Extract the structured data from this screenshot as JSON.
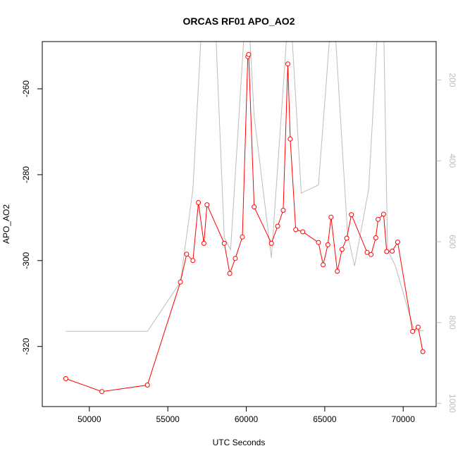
{
  "chart_data": {
    "type": "line",
    "title": "ORCAS RF01 APO_AO2",
    "xlabel": "UTC Seconds",
    "ylabel": "APO_AO2",
    "xlim": [
      47000,
      72100
    ],
    "ylim": [
      -334,
      -249
    ],
    "y2lim": [
      105,
      1008
    ],
    "y2_reversed": true,
    "x_ticks": [
      50000,
      55000,
      60000,
      65000,
      70000
    ],
    "y_ticks": [
      -320,
      -300,
      -280,
      -260
    ],
    "y2_ticks": [
      200,
      400,
      600,
      800,
      1000
    ],
    "series": [
      {
        "role": "primary",
        "color": "#ff0000",
        "marker": "open-circle",
        "x": [
          48500,
          50800,
          53700,
          55800,
          56200,
          56600,
          56950,
          57300,
          57500,
          58600,
          58950,
          59300,
          59750,
          60100,
          60150,
          60500,
          61600,
          62000,
          62350,
          62650,
          62800,
          63150,
          63600,
          64600,
          64900,
          65200,
          65400,
          65800,
          66100,
          66400,
          66700,
          67700,
          67950,
          68250,
          68400,
          68750,
          68950,
          69300,
          69650,
          70600,
          70950,
          71250
        ],
        "y": [
          -327.5,
          -330.5,
          -329,
          -305,
          -298.5,
          -300,
          -286.5,
          -296,
          -287,
          -296,
          -303,
          -299.5,
          -294.5,
          -252.5,
          -252,
          -287.5,
          -296,
          -292,
          -288.3,
          -254.2,
          -271.7,
          -292.8,
          -293.3,
          -295.8,
          -301,
          -296.3,
          -289.9,
          -302.5,
          -297.4,
          -294.8,
          -289.3,
          -298.1,
          -298.6,
          -294.7,
          -290.4,
          -289.2,
          -297.9,
          -297.8,
          -295.7,
          -316.5,
          -315.5,
          -321.2
        ]
      },
      {
        "role": "secondary",
        "color": "#bdbdbd",
        "x": [
          48500,
          53700,
          55800,
          56600,
          57200,
          58000,
          58600,
          59000,
          59900,
          60150,
          60500,
          61600,
          62600,
          62900,
          63500,
          64600,
          65400,
          65650,
          66450,
          66900,
          67800,
          68400,
          68750,
          69000,
          69500,
          70700,
          71300
        ],
        "y": [
          822,
          822,
          700,
          470,
          30,
          30,
          590,
          620,
          60,
          40,
          290,
          640,
          80,
          80,
          480,
          460,
          50,
          70,
          580,
          660,
          470,
          50,
          50,
          620,
          660,
          820,
          820
        ]
      }
    ]
  }
}
